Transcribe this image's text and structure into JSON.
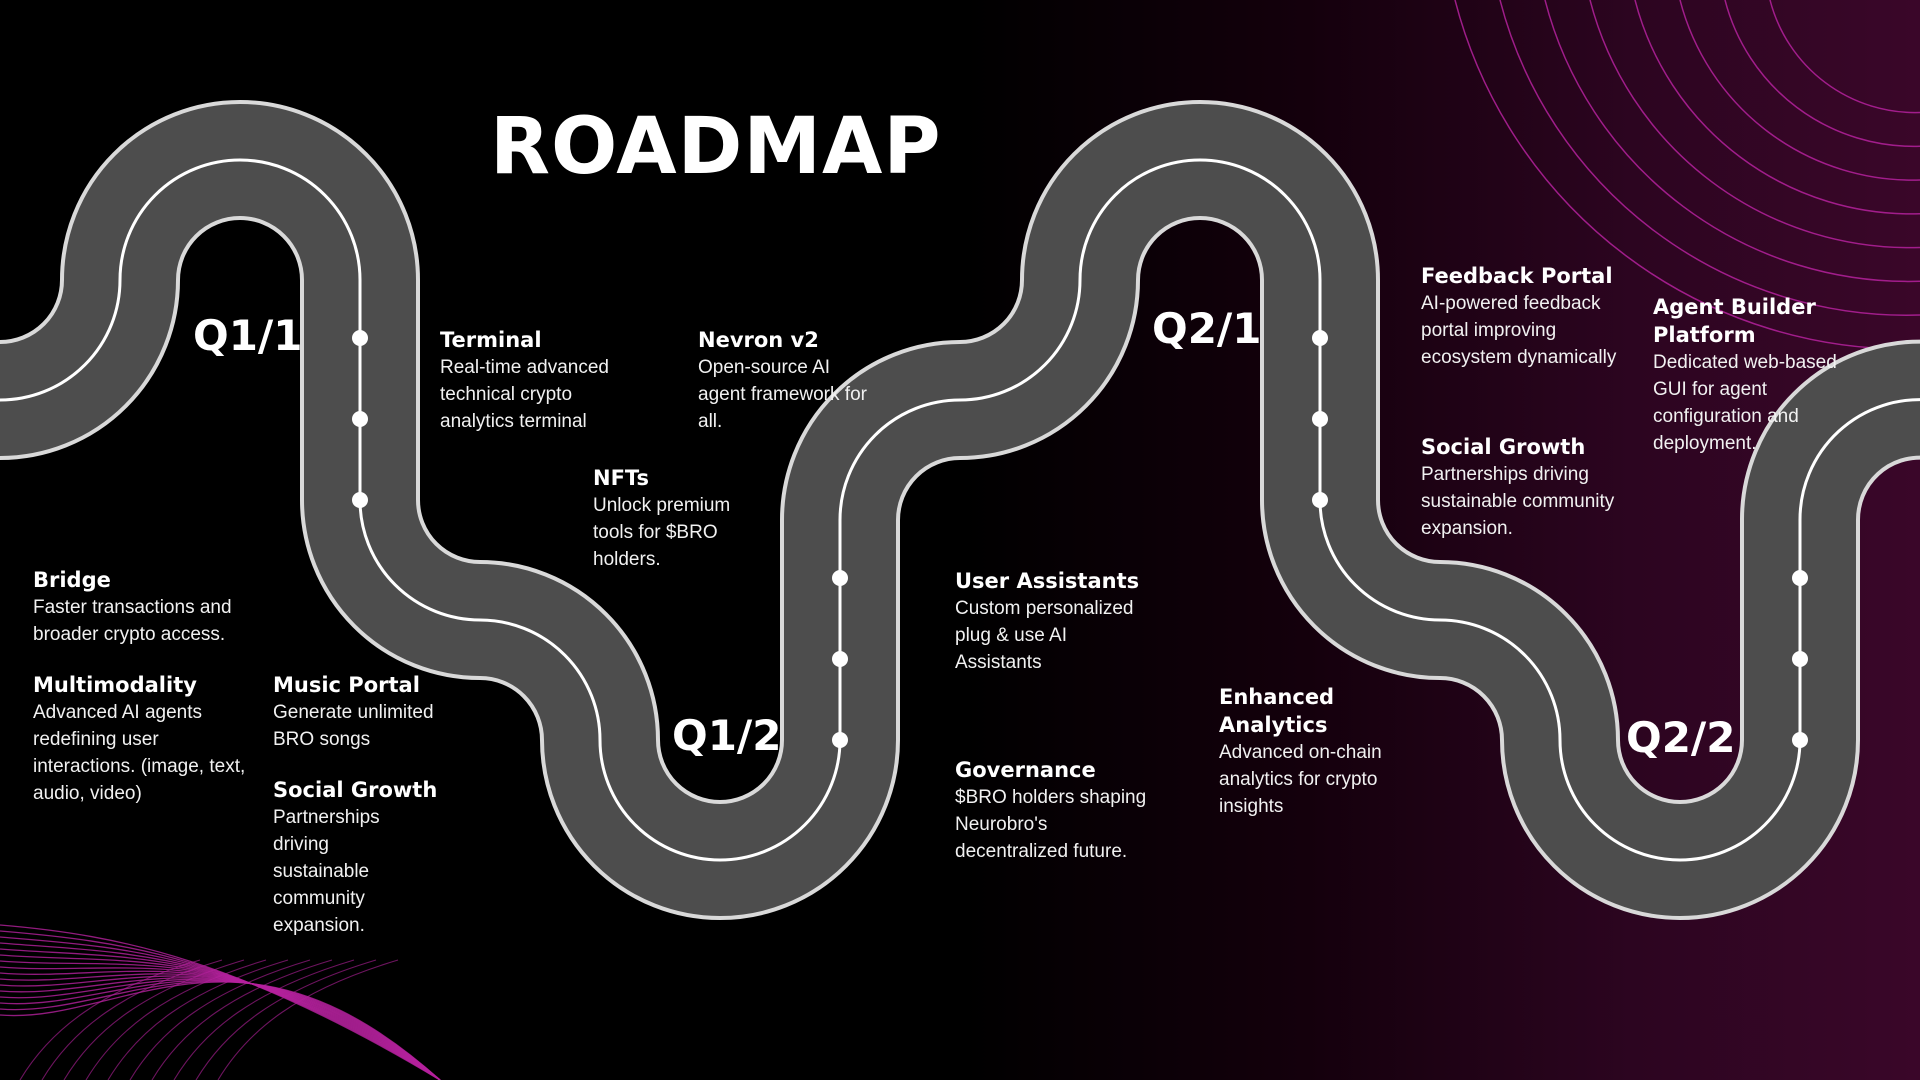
{
  "title": "ROADMAP",
  "colors": {
    "road": "#4d4d4d",
    "road_edge": "#d9d9d9",
    "accent_lines": "#b5229e",
    "background_end": "#3a0629"
  },
  "quarters": {
    "q1_1": "Q1/1",
    "q1_2": "Q1/2",
    "q2_1": "Q2/1",
    "q2_2": "Q2/2"
  },
  "items": {
    "terminal": {
      "title": "Terminal",
      "desc": "Real-time advanced technical crypto analytics terminal"
    },
    "nevron": {
      "title": "Nevron v2",
      "desc": "Open-source AI agent framework for all."
    },
    "nfts": {
      "title": "NFTs",
      "desc": "Unlock premium tools for $BRO holders."
    },
    "bridge": {
      "title": "Bridge",
      "desc": "Faster transactions and broader crypto access."
    },
    "multimodality": {
      "title": "Multimodality",
      "desc": "Advanced AI agents redefining user interactions. (image, text, audio, video)"
    },
    "music_portal": {
      "title": "Music Portal",
      "desc": "Generate unlimited BRO songs"
    },
    "social_growth_1": {
      "title": "Social Growth",
      "desc": "Partnerships driving sustainable community expansion."
    },
    "user_assistants": {
      "title": "User Assistants",
      "desc": "Custom personalized plug & use AI Assistants"
    },
    "governance": {
      "title": "Governance",
      "desc": "$BRO holders shaping Neurobro's decentralized future."
    },
    "enhanced_analytics": {
      "title": "Enhanced Analytics",
      "desc": "Advanced on-chain analytics for crypto insights"
    },
    "feedback_portal": {
      "title": "Feedback Portal",
      "desc": "AI-powered feedback portal improving ecosystem dynamically"
    },
    "social_growth_2": {
      "title": "Social Growth",
      "desc": "Partnerships driving sustainable community expansion."
    },
    "agent_builder": {
      "title": "Agent Builder Platform",
      "desc": "Dedicated web-based GUI for agent configuration and deployment."
    }
  }
}
